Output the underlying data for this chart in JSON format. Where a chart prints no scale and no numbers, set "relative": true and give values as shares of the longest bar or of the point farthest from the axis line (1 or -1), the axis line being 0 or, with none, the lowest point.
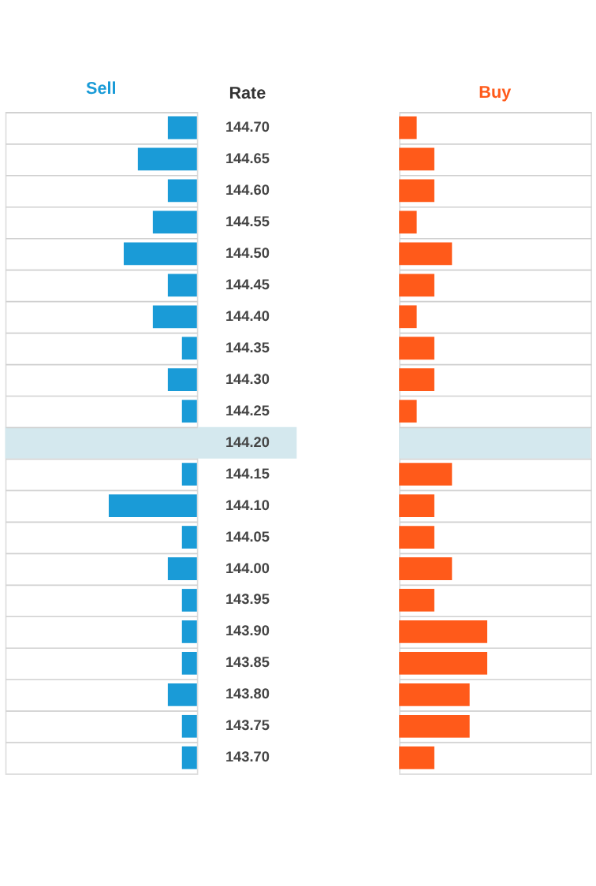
{
  "chart_data": [
    {
      "type": "bar",
      "orientation": "horizontal",
      "relative": true,
      "ylabel": "Rate",
      "grid": true,
      "tick_labels": "y",
      "categories": [
        "144.70",
        "144.65",
        "144.60",
        "144.55",
        "144.50",
        "144.45",
        "144.40",
        "144.35",
        "144.30",
        "144.25",
        "144.20",
        "144.15",
        "144.10",
        "144.05",
        "144.00",
        "143.95",
        "143.90",
        "143.85",
        "143.80",
        "143.75",
        "143.70"
      ],
      "series": [
        {
          "name": "Sell",
          "color": "#1a9bd7",
          "values": [
            -0.33,
            -0.67,
            -0.33,
            -0.5,
            -0.83,
            -0.33,
            -0.5,
            -0.17,
            -0.33,
            -0.17,
            null,
            -0.17,
            -1,
            -0.17,
            -0.33,
            -0.17,
            -0.17,
            -0.17,
            -0.33,
            -0.17,
            -0.17
          ]
        }
      ],
      "bands": [
        {
          "axis": "y",
          "from": "144.20",
          "to": "144.20",
          "color": "#d4e8ee"
        }
      ]
    },
    {
      "type": "bar",
      "orientation": "horizontal",
      "relative": true,
      "grid": true,
      "tick_labels": false,
      "categories": [
        "144.70",
        "144.65",
        "144.60",
        "144.55",
        "144.50",
        "144.45",
        "144.40",
        "144.35",
        "144.30",
        "144.25",
        "144.20",
        "144.15",
        "144.10",
        "144.05",
        "144.00",
        "143.95",
        "143.90",
        "143.85",
        "143.80",
        "143.75",
        "143.70"
      ],
      "series": [
        {
          "name": "Buy",
          "color": "#ff5a1a",
          "values": [
            0.2,
            0.4,
            0.4,
            0.2,
            0.6,
            0.4,
            0.2,
            0.4,
            0.4,
            0.2,
            null,
            0.6,
            0.4,
            0.4,
            0.6,
            0.4,
            1,
            1,
            0.8,
            0.8,
            0.4
          ]
        }
      ],
      "bands": [
        {
          "axis": "y",
          "from": "144.20",
          "to": "144.20",
          "color": "#d4e8ee"
        }
      ]
    }
  ]
}
